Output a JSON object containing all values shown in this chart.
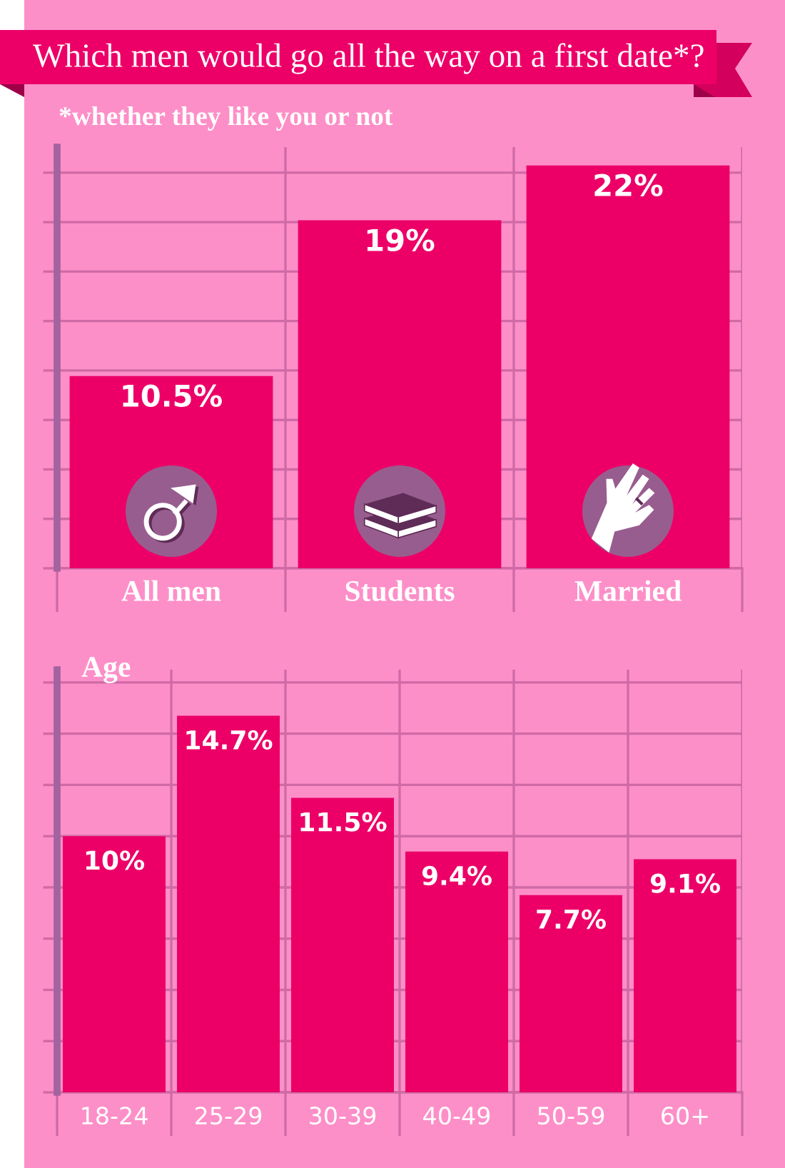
{
  "chart_data": [
    {
      "type": "bar",
      "title": "Which men would go all the way on a first date*?",
      "subtitle": "*whether they like you or not",
      "categories": [
        "All men",
        "Students",
        "Married"
      ],
      "values": [
        10.5,
        19,
        22
      ],
      "value_labels": [
        "10.5%",
        "19%",
        "22%"
      ],
      "color": "#ec0068",
      "ylim": [
        0,
        23
      ],
      "yticks": [
        {
          "value": 0,
          "label": null
        },
        {
          "value": 2.7,
          "label": null
        },
        {
          "value": 5.4,
          "label": null
        },
        {
          "value": 8.1,
          "label": null
        },
        {
          "value": 10.8,
          "label": null
        },
        {
          "value": 13.5,
          "label": null
        },
        {
          "value": 16.2,
          "label": null
        },
        {
          "value": 18.9,
          "label": null
        },
        {
          "value": 21.6,
          "label": null
        }
      ],
      "tick_labels": "x",
      "grid": true
    },
    {
      "type": "bar",
      "title": "Age",
      "categories": [
        "18-24",
        "25-29",
        "30-39",
        "40-49",
        "50-59",
        "60+"
      ],
      "values": [
        10,
        14.7,
        11.5,
        9.4,
        7.7,
        9.1
      ],
      "value_labels": [
        "10%",
        "14.7%",
        "11.5%",
        "9.4%",
        "7.7%",
        "9.1%"
      ],
      "color": "#ec0068",
      "ylim": [
        0,
        16.5
      ],
      "yticks": [
        {
          "value": 0,
          "label": null
        },
        {
          "value": 2,
          "label": null
        },
        {
          "value": 4,
          "label": null
        },
        {
          "value": 6,
          "label": null
        },
        {
          "value": 8,
          "label": null
        },
        {
          "value": 10,
          "label": null
        },
        {
          "value": 12,
          "label": null
        },
        {
          "value": 14,
          "label": null
        },
        {
          "value": 16,
          "label": null
        }
      ],
      "tick_labels": "x",
      "grid": true
    }
  ]
}
